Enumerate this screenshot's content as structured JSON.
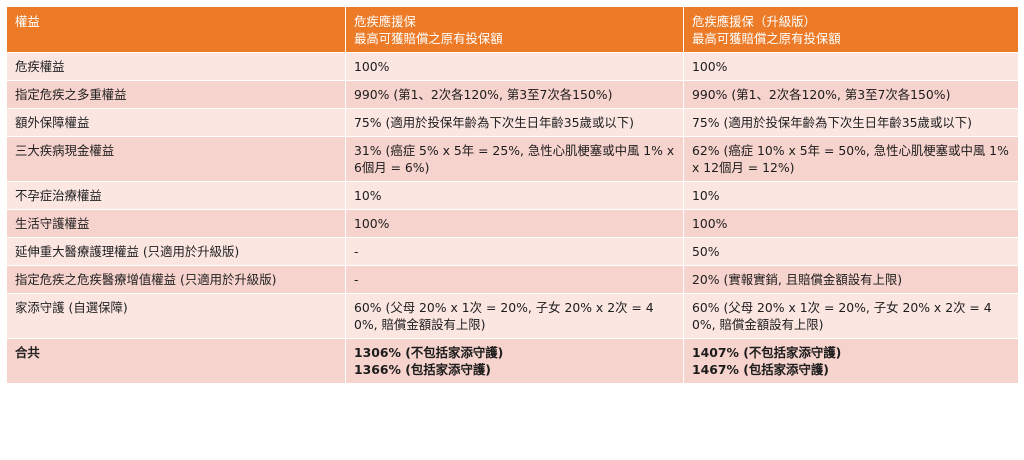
{
  "table": {
    "headers": [
      [
        "權益"
      ],
      [
        "危疾應援保",
        "最高可獲賠償之原有投保額"
      ],
      [
        "危疾應援保（升級版）",
        "最高可獲賠償之原有投保額"
      ]
    ],
    "rows": [
      [
        "危疾權益",
        "100%",
        "100%"
      ],
      [
        "指定危疾之多重權益",
        "990% (第1、2次各120%, 第3至7次各150%)",
        "990% (第1、2次各120%, 第3至7次各150%)"
      ],
      [
        "額外保障權益",
        "75% (適用於投保年齡為下次生日年齡35歲或以下)",
        "75% (適用於投保年齡為下次生日年齡35歲或以下)"
      ],
      [
        "三大疾病現金權益",
        "31% (癌症 5% x 5年 = 25%, 急性心肌梗塞或中風 1% x 6個月 = 6%)",
        "62% (癌症 10% x 5年 = 50%, 急性心肌梗塞或中風 1% x 12個月 = 12%)"
      ],
      [
        "不孕症治療權益",
        "10%",
        "10%"
      ],
      [
        "生活守護權益",
        "100%",
        "100%"
      ],
      [
        "延伸重大醫療護理權益 (只適用於升級版)",
        "-",
        "50%"
      ],
      [
        "指定危疾之危疾醫療增值權益 (只適用於升級版)",
        "-",
        "20% (實報實銷, 且賠償金額設有上限)"
      ],
      [
        "家添守護 (自選保障)",
        "60% (父母 20% x 1次 = 20%, 子女 20% x 2次 = 40%, 賠償金額設有上限)",
        "60% (父母 20% x 1次 = 20%, 子女 20% x 2次 = 40%, 賠償金額設有上限)"
      ]
    ],
    "total": {
      "label": "合共",
      "col2": [
        "1306% (不包括家添守護)",
        "1366% (包括家添守護)"
      ],
      "col3": [
        "1407% (不包括家添守護)",
        "1467% (包括家添守護)"
      ]
    }
  }
}
